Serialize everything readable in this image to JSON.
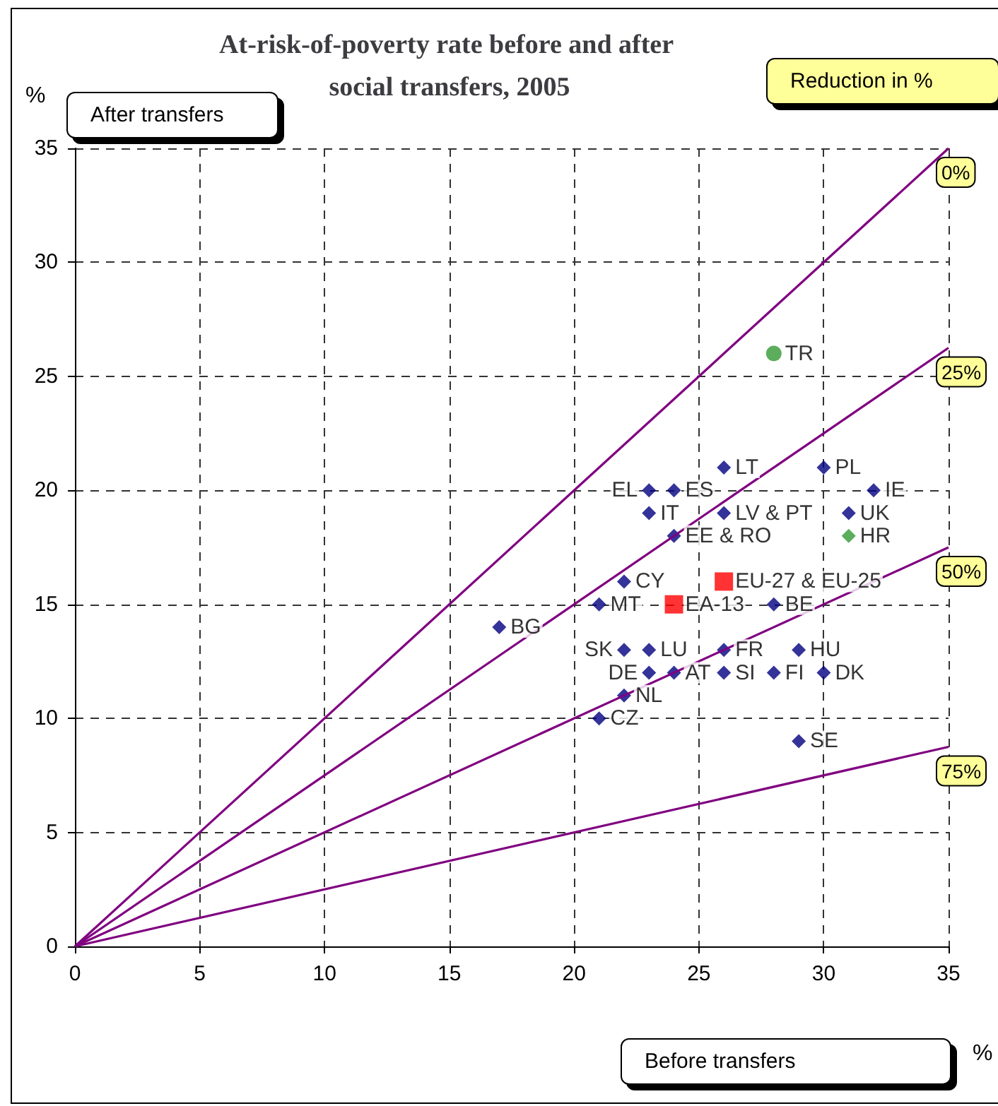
{
  "chart_data": {
    "type": "scatter",
    "title": "At-risk-of-poverty rate before and after social transfers, 2005",
    "xlabel": "Before transfers",
    "ylabel": "After transfers",
    "legend_title": "Reduction in %",
    "xlim": [
      0,
      35
    ],
    "ylim": [
      0,
      35
    ],
    "xticks": [
      0,
      5,
      10,
      15,
      20,
      25,
      30,
      35
    ],
    "yticks": [
      0,
      5,
      10,
      15,
      20,
      25,
      30,
      35
    ],
    "grid": true,
    "legend": false,
    "series": [
      {
        "type": "line",
        "name": "0%",
        "color": "#800080",
        "x": [
          0,
          35
        ],
        "values": [
          0,
          35
        ],
        "line_style": "solid",
        "marker": "none"
      },
      {
        "type": "line",
        "name": "25%",
        "color": "#800080",
        "x": [
          0,
          35
        ],
        "values": [
          0,
          26.25
        ],
        "line_style": "solid",
        "marker": "none"
      },
      {
        "type": "line",
        "name": "50%",
        "color": "#800080",
        "x": [
          0,
          35
        ],
        "values": [
          0,
          17.5
        ],
        "line_style": "solid",
        "marker": "none"
      },
      {
        "type": "line",
        "name": "75%",
        "color": "#800080",
        "x": [
          0,
          35
        ],
        "values": [
          0,
          8.75
        ],
        "line_style": "solid",
        "marker": "none"
      },
      {
        "color": "#000080",
        "marker": "diamond",
        "x": [
          17,
          21,
          22,
          22,
          23,
          22,
          21,
          23,
          24,
          23,
          23,
          24,
          26,
          26,
          24,
          28,
          26,
          26,
          28,
          29,
          30,
          29,
          30,
          32,
          31
        ],
        "values": [
          14,
          15,
          16,
          13,
          13,
          11,
          10,
          12,
          12,
          19,
          20,
          20,
          21,
          19,
          18,
          15,
          13,
          12,
          12,
          13,
          12,
          9,
          21,
          20,
          19
        ]
      },
      {
        "color": "#ff0000",
        "marker": "square",
        "x": [
          24,
          26
        ],
        "values": [
          15,
          16
        ]
      },
      {
        "color": "#339933",
        "marker": "circle",
        "x": [
          28
        ],
        "values": [
          26
        ]
      },
      {
        "color": "#339933",
        "marker": "diamond",
        "x": [
          31
        ],
        "values": [
          18
        ]
      }
    ],
    "annotations": [
      "%",
      "%",
      {
        "text": "BG",
        "x": 17,
        "y": 14
      },
      {
        "text": "MT",
        "x": 21,
        "y": 15
      },
      {
        "text": "CY",
        "x": 22,
        "y": 16
      },
      {
        "text": "SK",
        "x": 22,
        "y": 13
      },
      {
        "text": "LU",
        "x": 23,
        "y": 13
      },
      {
        "text": "NL",
        "x": 22,
        "y": 11
      },
      {
        "text": "CZ",
        "x": 21,
        "y": 10
      },
      {
        "text": "DE",
        "x": 23,
        "y": 12
      },
      {
        "text": "AT",
        "x": 24,
        "y": 12
      },
      {
        "text": "IT",
        "x": 23,
        "y": 19
      },
      {
        "text": "EL",
        "x": 23,
        "y": 20
      },
      {
        "text": "ES",
        "x": 24,
        "y": 20
      },
      {
        "text": "LT",
        "x": 26,
        "y": 21
      },
      {
        "text": "LV & PT",
        "x": 26,
        "y": 19
      },
      {
        "text": "EE & RO",
        "x": 24,
        "y": 18
      },
      {
        "text": "BE",
        "x": 28,
        "y": 15
      },
      {
        "text": "FR",
        "x": 26,
        "y": 13
      },
      {
        "text": "SI",
        "x": 26,
        "y": 12
      },
      {
        "text": "FI",
        "x": 28,
        "y": 12
      },
      {
        "text": "HU",
        "x": 29,
        "y": 13
      },
      {
        "text": "DK",
        "x": 30,
        "y": 12
      },
      {
        "text": "SE",
        "x": 29,
        "y": 9
      },
      {
        "text": "PL",
        "x": 30,
        "y": 21
      },
      {
        "text": "IE",
        "x": 32,
        "y": 20
      },
      {
        "text": "UK",
        "x": 31,
        "y": 19
      },
      {
        "text": "EA-13",
        "x": 24,
        "y": 15
      },
      {
        "text": "EU-27 & EU-25",
        "x": 26,
        "y": 16
      },
      {
        "text": "TR",
        "x": 28,
        "y": 26
      },
      {
        "text": "HR",
        "x": 31,
        "y": 18
      }
    ]
  }
}
